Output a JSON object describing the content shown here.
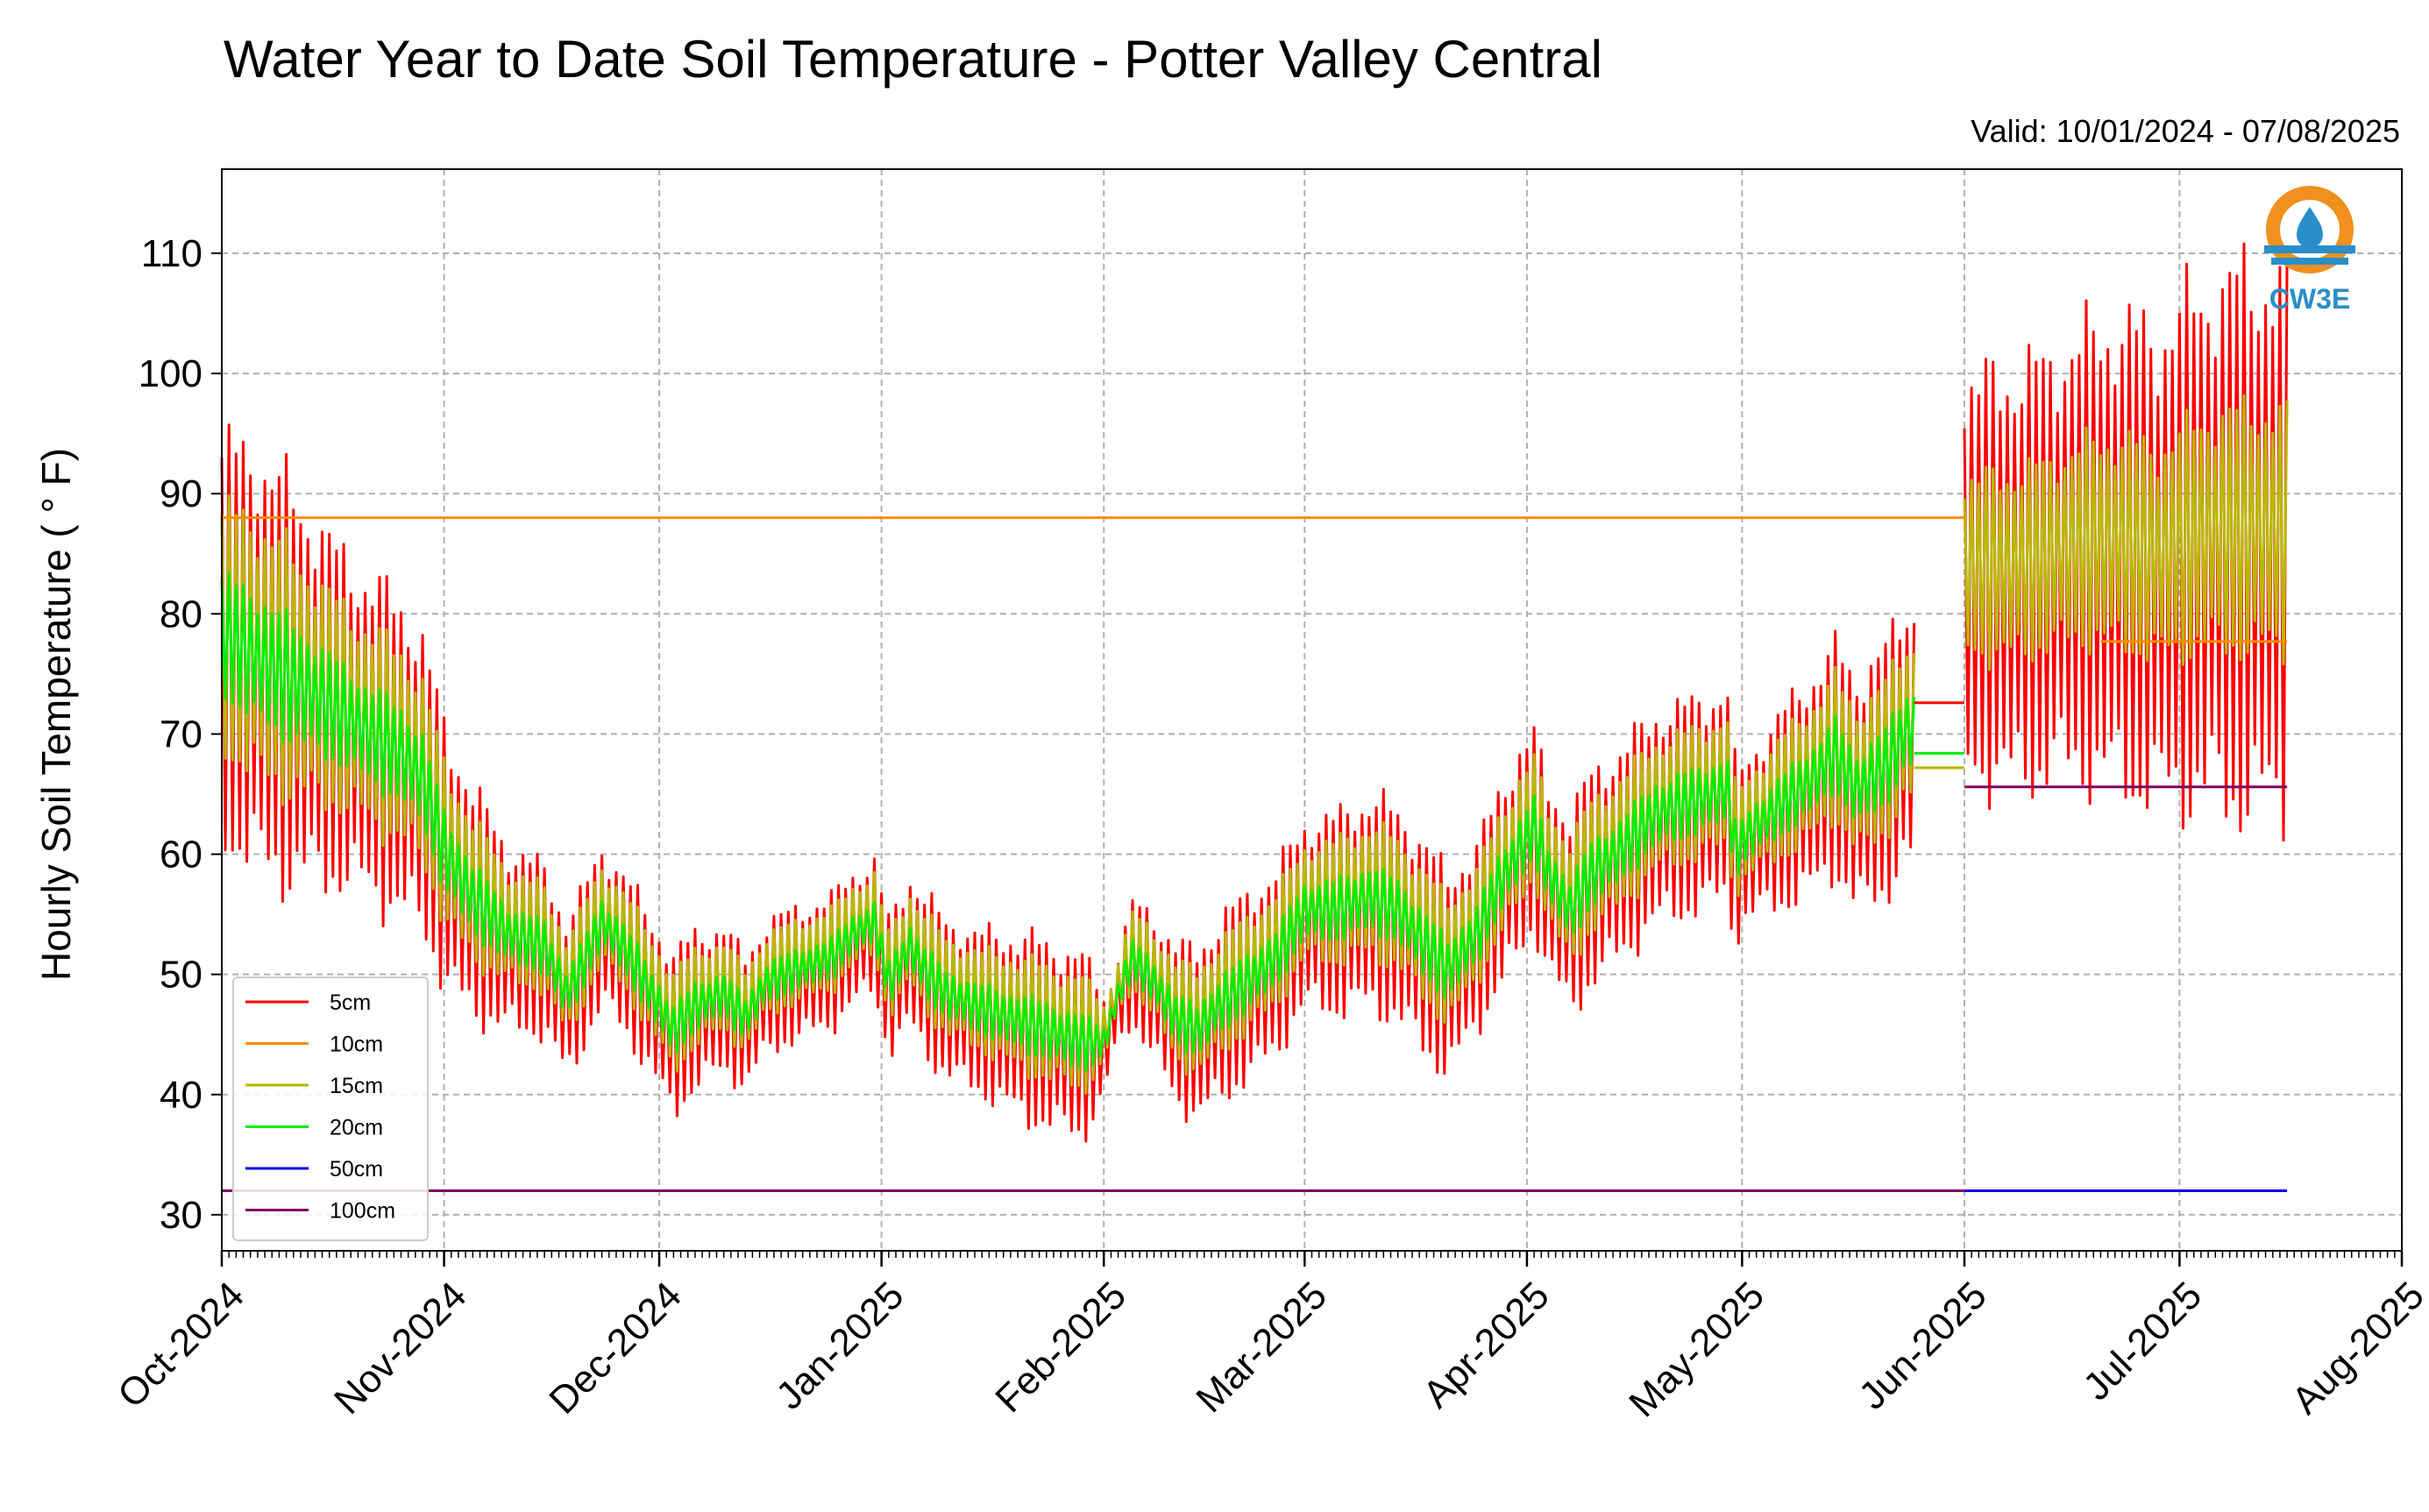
{
  "chart_data": {
    "type": "line",
    "title": "Water Year to Date Soil Temperature - Potter Valley Central",
    "subtitle": "Valid: 10/01/2024 - 07/08/2025",
    "ylabel": "Hourly Soil Temperature ( ° F)",
    "xlabel": "",
    "ylim": [
      27,
      117
    ],
    "yticks": [
      30,
      40,
      50,
      60,
      70,
      80,
      90,
      100,
      110
    ],
    "xlim_days": [
      0,
      304
    ],
    "xtick_labels": [
      "Oct-2024",
      "Nov-2024",
      "Dec-2024",
      "Jan-2025",
      "Feb-2025",
      "Mar-2025",
      "Apr-2025",
      "May-2025",
      "Jun-2025",
      "Jul-2025",
      "Aug-2025"
    ],
    "xtick_days": [
      0,
      31,
      61,
      92,
      123,
      151,
      182,
      212,
      243,
      273,
      304
    ],
    "grid": true,
    "legend_position": "lower-left",
    "logo_text": "CW3E",
    "series": [
      {
        "name": "5cm",
        "color": "#ff0000"
      },
      {
        "name": "10cm",
        "color": "#ff8c00"
      },
      {
        "name": "15cm",
        "color": "#b8b800"
      },
      {
        "name": "20cm",
        "color": "#00ee00"
      },
      {
        "name": "50cm",
        "color": "#0000ee"
      },
      {
        "name": "100cm",
        "color": "#800060"
      }
    ],
    "daily_mean_20cm": {
      "x": [
        0,
        5,
        10,
        15,
        20,
        25,
        28,
        31,
        35,
        40,
        45,
        48,
        50,
        53,
        56,
        58,
        61,
        63,
        66,
        70,
        73,
        76,
        80,
        85,
        88,
        91,
        93,
        96,
        98,
        101,
        105,
        110,
        115,
        120,
        123,
        125,
        127,
        130,
        133,
        136,
        139,
        143,
        147,
        151,
        155,
        160,
        164,
        168,
        171,
        175,
        178,
        181,
        183,
        185,
        188,
        191,
        195,
        200,
        205,
        210,
        211,
        214,
        218,
        222,
        225,
        228,
        232,
        235,
        236
      ],
      "y": [
        78,
        76,
        74,
        72,
        70,
        68,
        66,
        60,
        56,
        53,
        52,
        48,
        50,
        54,
        52,
        50,
        47,
        45,
        47,
        48,
        46,
        49,
        50,
        51,
        53,
        54,
        49,
        52,
        50,
        48,
        47,
        46,
        45,
        44,
        44,
        48,
        51,
        49,
        46,
        45,
        47,
        49,
        51,
        55,
        55,
        56,
        55,
        52,
        50,
        53,
        57,
        60,
        62,
        58,
        55,
        58,
        60,
        63,
        64,
        65,
        60,
        62,
        64,
        66,
        68,
        65,
        67,
        70,
        70
      ]
    },
    "daily_swing_5cm": {
      "x": [
        0,
        5,
        10,
        15,
        20,
        25,
        28,
        31,
        40,
        48,
        55,
        61,
        66,
        73,
        80,
        88,
        92,
        98,
        105,
        112,
        120,
        124,
        128,
        133,
        140,
        147,
        151,
        160,
        168,
        175,
        181,
        185,
        190,
        195,
        200,
        205,
        210,
        212,
        220,
        228,
        236
      ],
      "y": [
        15,
        16,
        15,
        13,
        12,
        12,
        11,
        10,
        7,
        6,
        6,
        6,
        6,
        5,
        5,
        5,
        5,
        6,
        6,
        7,
        7,
        3,
        5,
        6,
        7,
        7,
        7,
        8,
        8,
        7,
        8,
        7,
        8,
        8,
        8,
        8,
        8,
        6,
        8,
        9,
        10
      ]
    },
    "summer_mean": {
      "x": [
        243,
        250,
        255,
        260,
        265,
        270,
        273,
        278,
        283,
        288
      ],
      "y": [
        83,
        83,
        84,
        85,
        85,
        84,
        85,
        86,
        86,
        86
      ]
    },
    "summer_swing_5cm": {
      "x": [
        243,
        250,
        255,
        260,
        265,
        270,
        273,
        278,
        283,
        288
      ],
      "y": [
        15,
        16,
        16,
        17,
        18,
        18,
        19,
        20,
        21,
        20
      ]
    },
    "constant_lines": [
      {
        "series": "10cm",
        "x": [
          0,
          243
        ],
        "y": 88
      },
      {
        "series": "100cm",
        "x": [
          0,
          243
        ],
        "y": 32
      },
      {
        "series": "50cm",
        "x": [
          243,
          288
        ],
        "y": 32
      },
      {
        "series": "100cm",
        "x": [
          243,
          288
        ],
        "y": 65.6
      },
      {
        "series": "5cm",
        "x": [
          236,
          243
        ],
        "y": 72.6
      },
      {
        "series": "20cm",
        "x": [
          236,
          243
        ],
        "y": 68.4
      },
      {
        "series": "15cm",
        "x": [
          236,
          243
        ],
        "y": 67.2
      },
      {
        "series": "10cm",
        "x": [
          262,
          288
        ],
        "y": 77.7
      }
    ]
  }
}
